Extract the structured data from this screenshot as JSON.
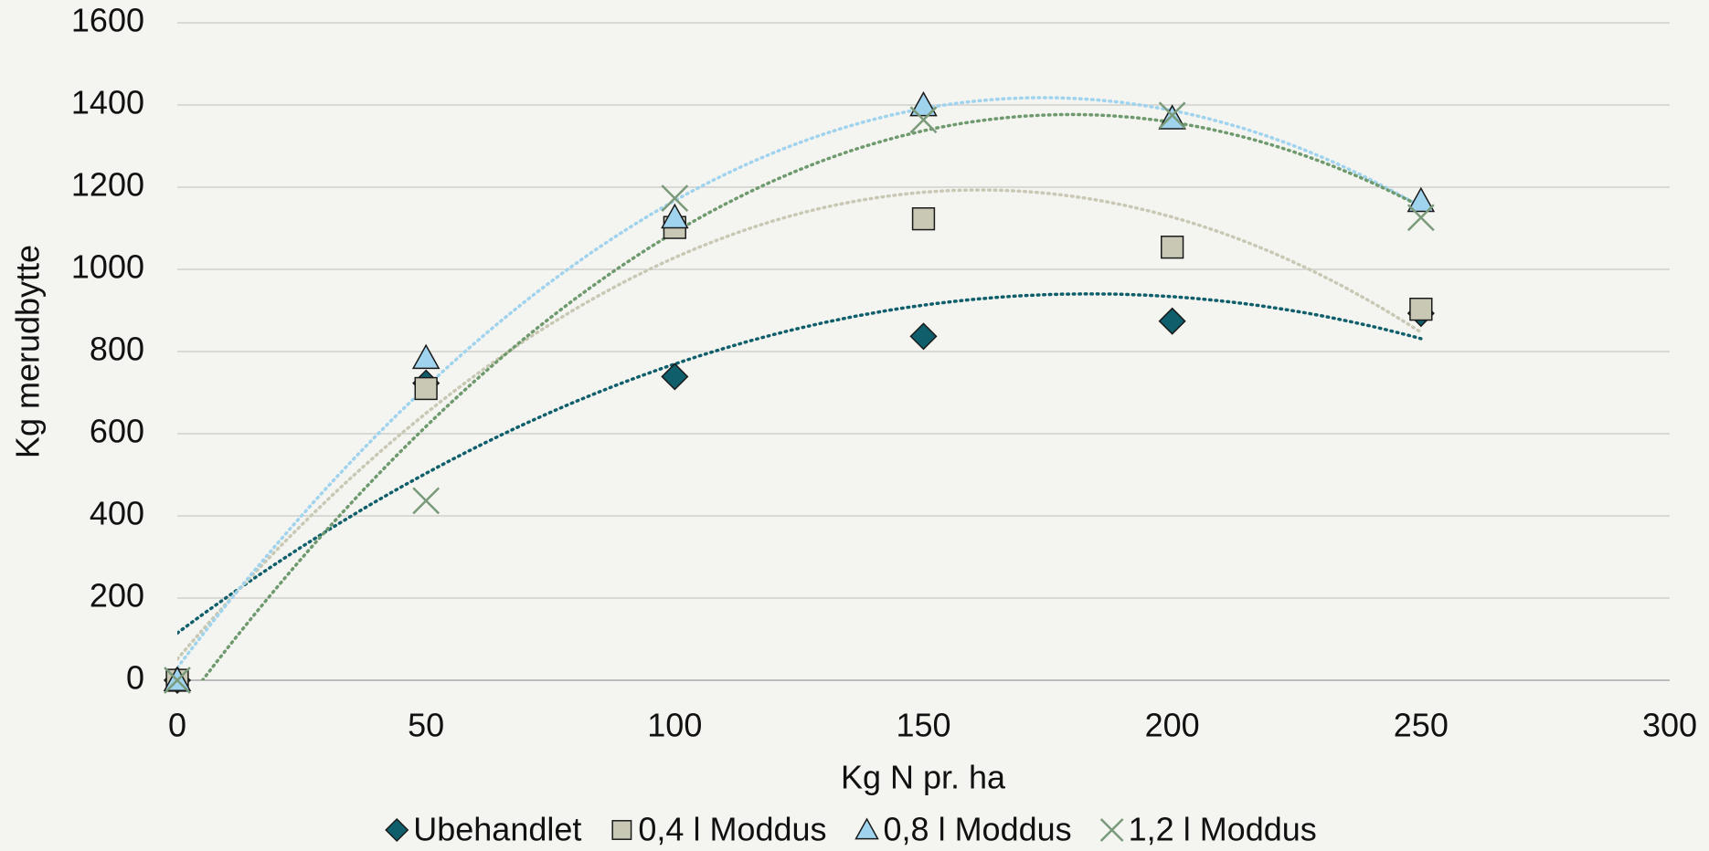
{
  "chart_data": {
    "type": "scatter",
    "xlabel": "Kg N pr. ha",
    "ylabel": "Kg merudbytte",
    "x": [
      0,
      50,
      100,
      150,
      200,
      250
    ],
    "series": [
      {
        "name": "Ubehandlet",
        "color": "#0e5f6b",
        "marker": "diamond",
        "trend_color": "#0e5f6b",
        "values": [
          0,
          723,
          739,
          837,
          874,
          893
        ]
      },
      {
        "name": "0,4 l Moddus",
        "color": "#c9c8b4",
        "marker": "square",
        "trend_color": "#c9c8b4",
        "values": [
          0,
          710,
          1102,
          1123,
          1054,
          903
        ]
      },
      {
        "name": "0,8 l Moddus",
        "color": "#9fd3ee",
        "marker": "triangle",
        "trend_color": "#9fd3ee",
        "values": [
          0,
          784,
          1126,
          1399,
          1367,
          1166
        ]
      },
      {
        "name": "1,2 l Moddus",
        "color": "#7a9a7a",
        "marker": "x",
        "trend_color": "#6e9a6e",
        "values": [
          0,
          437,
          1173,
          1364,
          1375,
          1126
        ]
      }
    ],
    "trendline": {
      "type": "polynomial",
      "order": 2
    },
    "xlim": [
      0,
      300
    ],
    "xticks": [
      0,
      50,
      100,
      150,
      200,
      250,
      300
    ],
    "ylim": [
      0,
      1600
    ],
    "yticks": [
      0,
      200,
      400,
      600,
      800,
      1000,
      1200,
      1400,
      1600
    ],
    "grid": true,
    "legend": "bottom"
  }
}
